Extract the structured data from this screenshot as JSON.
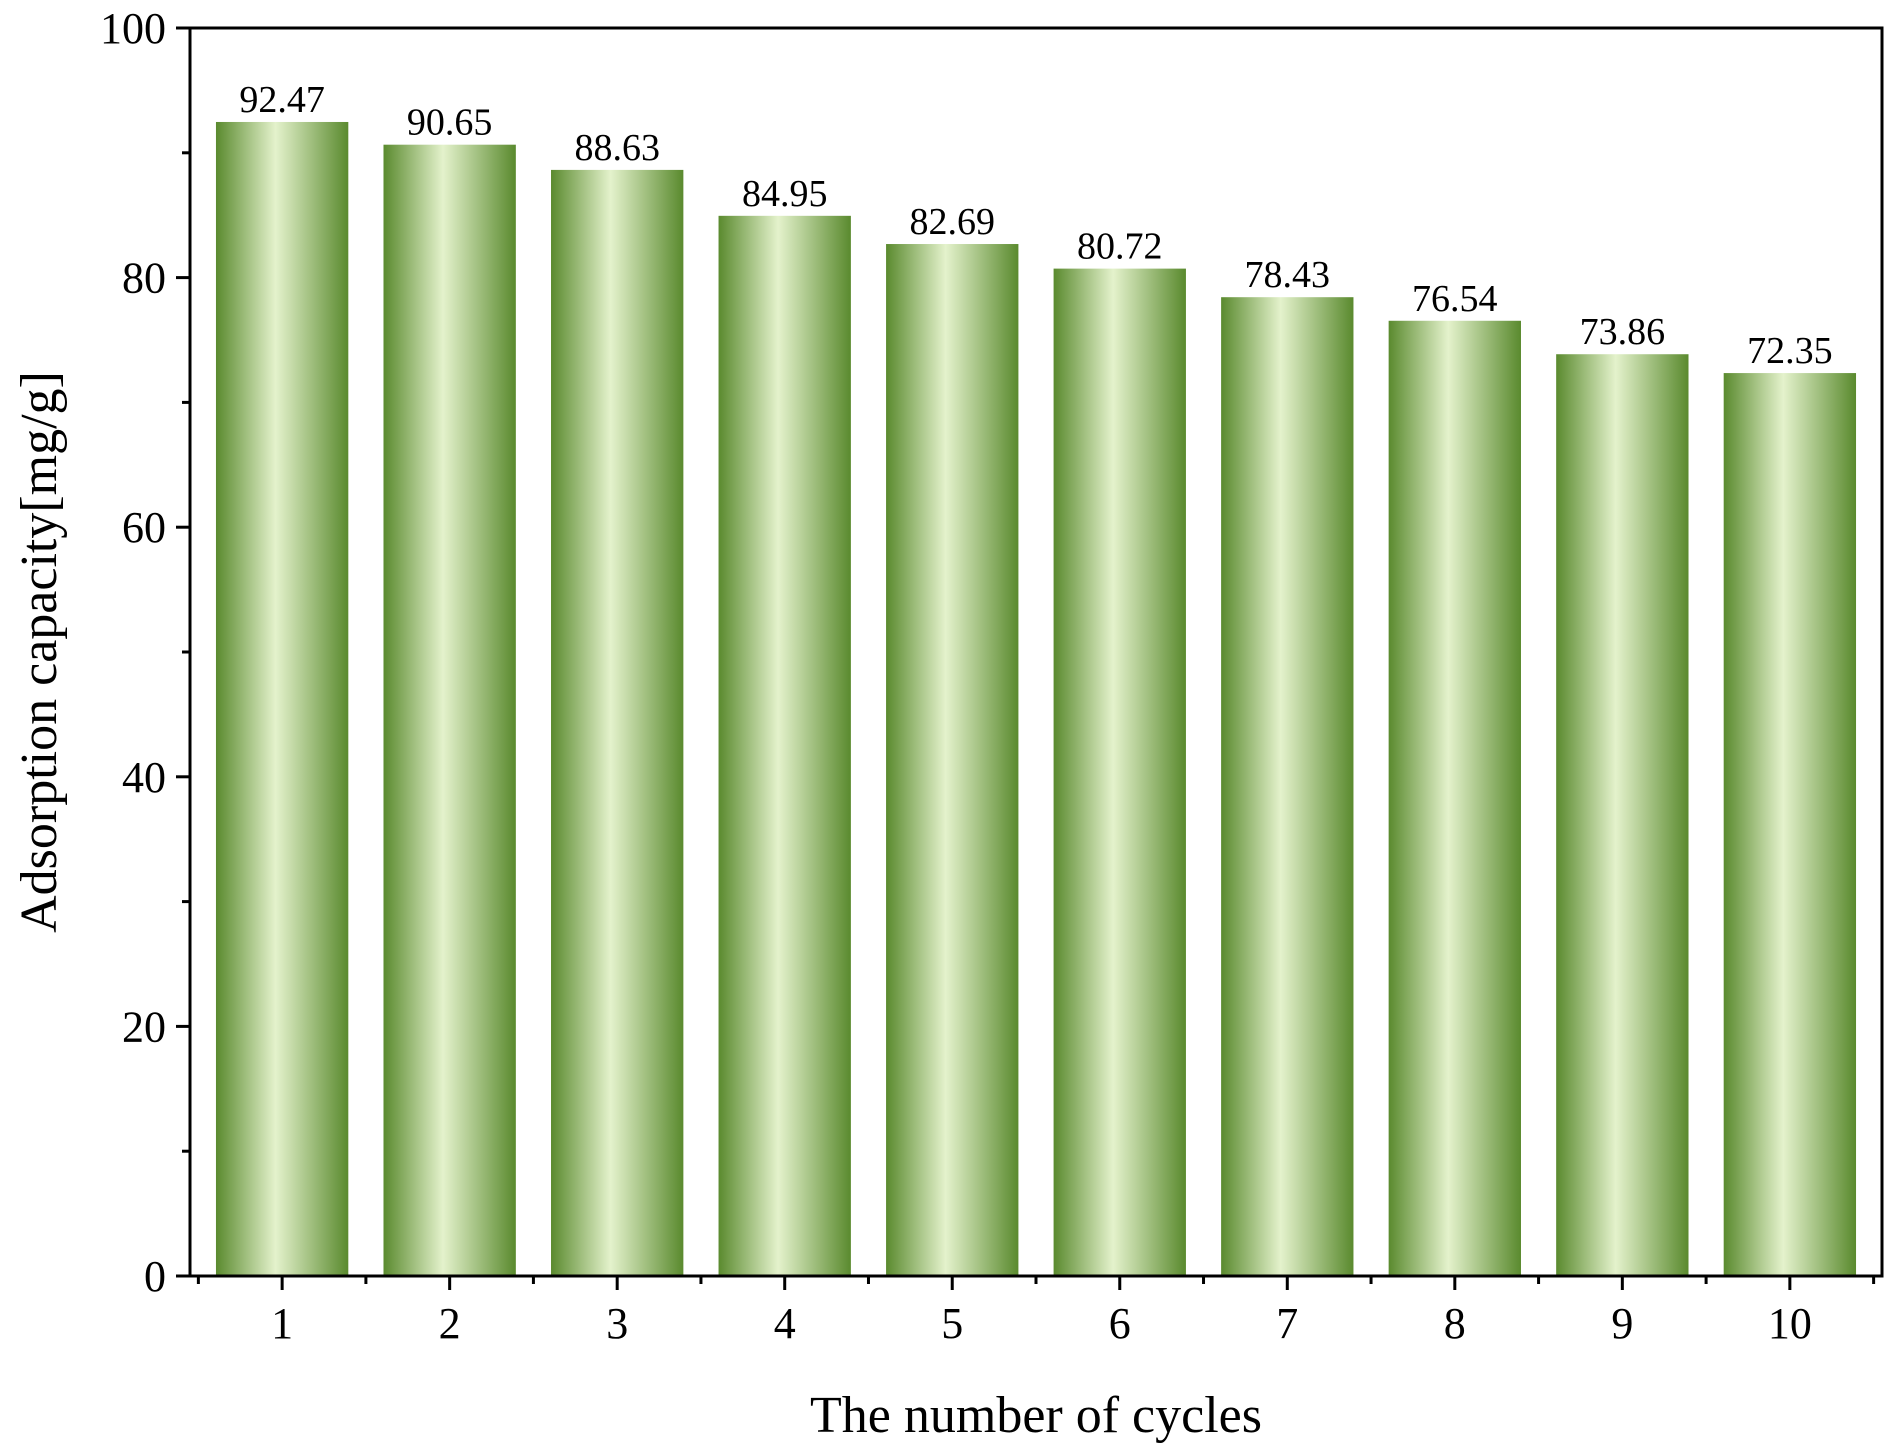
{
  "chart_data": {
    "type": "bar",
    "title": "",
    "xlabel": "The number of cycles",
    "ylabel": "Adsorption capacity[mg/g]",
    "categories": [
      "1",
      "2",
      "3",
      "4",
      "5",
      "6",
      "7",
      "8",
      "9",
      "10"
    ],
    "values": [
      92.47,
      90.65,
      88.63,
      84.95,
      82.69,
      80.72,
      78.43,
      76.54,
      73.86,
      72.35
    ],
    "data_labels": [
      "92.47",
      "90.65",
      "88.63",
      "84.95",
      "82.69",
      "80.72",
      "78.43",
      "76.54",
      "73.86",
      "72.35"
    ],
    "ylim": [
      0,
      100
    ],
    "yticks": [
      0,
      20,
      40,
      60,
      80,
      100
    ],
    "yticks_labels": [
      "0",
      "20",
      "40",
      "60",
      "80",
      "100"
    ],
    "y_minor_step": 10,
    "grid": false,
    "legend": "none",
    "colors": {
      "bar_dark": "#5a8a2e",
      "bar_light": "#e4f2cc",
      "axis": "#000000"
    }
  }
}
